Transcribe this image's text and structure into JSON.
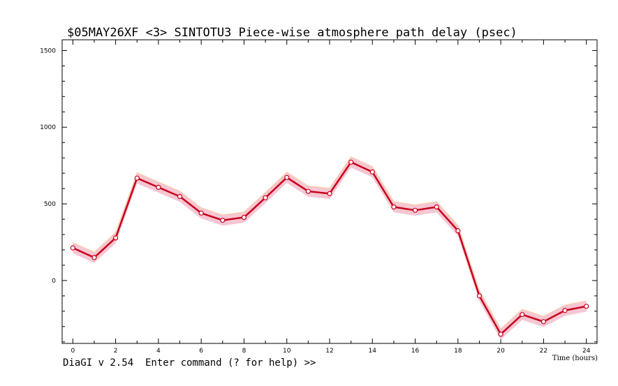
{
  "chart_data": {
    "type": "line",
    "title": "$05MAY26XF <3>  SINTOTU3  Piece-wise atmosphere path delay (psec)",
    "xlabel": "Time (hours)",
    "ylabel": "",
    "xlim": [
      -0.5,
      24.5
    ],
    "ylim": [
      -410,
      1570
    ],
    "x_ticks": [
      0,
      2,
      4,
      6,
      8,
      10,
      12,
      14,
      16,
      18,
      20,
      22,
      24
    ],
    "y_ticks": [
      0,
      500,
      1000,
      1500
    ],
    "grid": false,
    "band_halfwidth": 35,
    "series": [
      {
        "x": [
          0,
          1,
          2,
          3,
          4,
          5,
          6,
          7,
          8,
          9,
          10,
          11,
          12,
          13,
          14,
          15,
          16,
          17,
          18,
          19,
          20,
          21,
          22,
          23,
          24
        ],
        "values": [
          213,
          150,
          278,
          668,
          608,
          548,
          440,
          393,
          412,
          540,
          672,
          582,
          567,
          772,
          708,
          480,
          458,
          480,
          325,
          -100,
          -350,
          -222,
          -268,
          -195,
          -168
        ]
      }
    ],
    "colors": {
      "line": "#c8001a",
      "band": "#f4b8c8",
      "band_edge": "#f7d0a0",
      "marker_fill": "#ffffff"
    }
  },
  "prompt": {
    "text": "DiaGI v 2.54  Enter command (? for help) >>"
  }
}
